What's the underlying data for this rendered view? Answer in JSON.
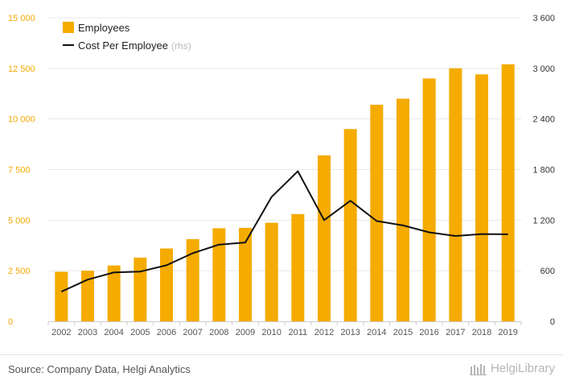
{
  "chart_data": {
    "type": "bar",
    "categories": [
      "2002",
      "2003",
      "2004",
      "2005",
      "2006",
      "2007",
      "2008",
      "2009",
      "2010",
      "2011",
      "2012",
      "2013",
      "2014",
      "2015",
      "2016",
      "2017",
      "2018",
      "2019"
    ],
    "series": [
      {
        "name": "Employees",
        "type": "bar",
        "axis": "left",
        "color": "#f5ab00",
        "values": [
          2450,
          2500,
          2760,
          3150,
          3600,
          4060,
          4600,
          4620,
          4870,
          5300,
          8200,
          9500,
          10700,
          11000,
          12000,
          12500,
          12200,
          12700
        ]
      },
      {
        "name": "Cost Per Employee",
        "legend_note": "(rhs)",
        "type": "line",
        "axis": "right",
        "color": "#111111",
        "values": [
          352,
          495,
          580,
          590,
          665,
          808,
          910,
          935,
          1475,
          1780,
          1200,
          1430,
          1190,
          1138,
          1055,
          1012,
          1035,
          1033
        ]
      }
    ],
    "y_left": {
      "ylim": [
        0,
        15000
      ],
      "ticks": [
        0,
        2500,
        5000,
        7500,
        10000,
        12500,
        15000
      ],
      "tick_labels": [
        "0",
        "2 500",
        "5 000",
        "7 500",
        "10 000",
        "12 500",
        "15 000"
      ],
      "color": "#f5a800"
    },
    "y_right": {
      "ylim": [
        0,
        3600
      ],
      "ticks": [
        0,
        600,
        1200,
        1800,
        2400,
        3000,
        3600
      ],
      "tick_labels": [
        "0",
        "600",
        "1 200",
        "1 800",
        "2 400",
        "3 000",
        "3 600"
      ]
    },
    "grid": true,
    "legend_position": "top-left"
  },
  "footer": {
    "source": "Source: Company Data, Helgi Analytics",
    "brand": "HelgiLibrary"
  }
}
